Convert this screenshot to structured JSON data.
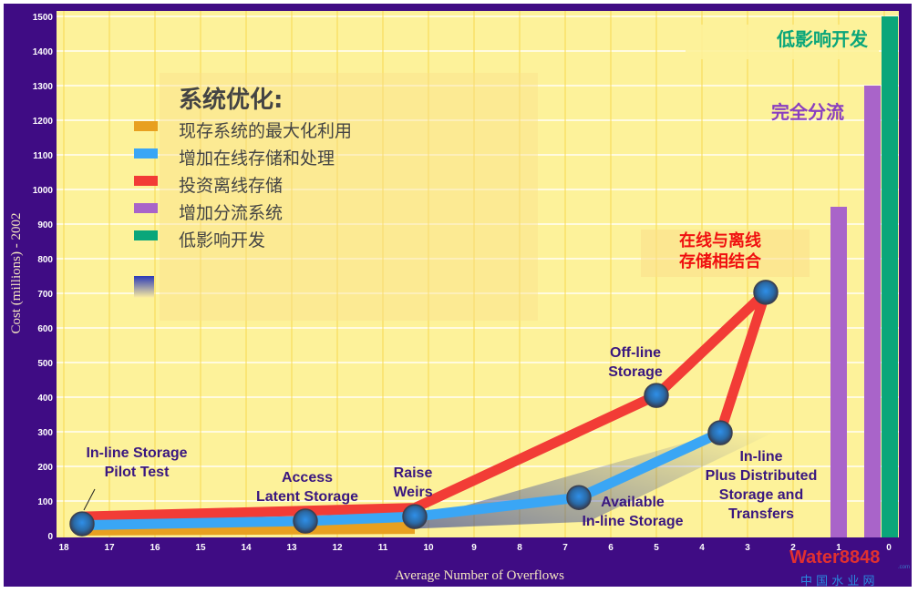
{
  "chart_data": {
    "type": "line",
    "xlabel": "Average Number of Overflows",
    "ylabel": "Cost (millions) - 2002",
    "xlim": [
      18,
      0
    ],
    "ylim": [
      0,
      1500
    ],
    "xticks": [
      18,
      17,
      16,
      15,
      14,
      13,
      12,
      11,
      10,
      9,
      8,
      7,
      6,
      5,
      4,
      3,
      2,
      1,
      0
    ],
    "yticks": [
      0,
      100,
      200,
      300,
      400,
      500,
      600,
      700,
      800,
      900,
      1000,
      1100,
      1200,
      1300,
      1400,
      1500
    ],
    "grid": true,
    "legend": {
      "title": "系统优化:",
      "placement": "top-left",
      "entries": [
        {
          "label": "现存系统的最大化利用",
          "color": "#e8a020"
        },
        {
          "label": "增加在线存储和处理",
          "color": "#3aa6f5"
        },
        {
          "label": "投资离线存储",
          "color": "#f23c36"
        },
        {
          "label": "增加分流系统",
          "color": "#a964c9"
        },
        {
          "label": "低影响开发",
          "color": "#0aa67a"
        }
      ]
    },
    "series": [
      {
        "name": "现存系统的最大化利用",
        "color": "#e8a020",
        "points": [
          [
            17.6,
            12
          ],
          [
            10.3,
            40
          ]
        ]
      },
      {
        "name": "增加在线存储和处理",
        "color": "#3aa6f5",
        "points": [
          [
            17.6,
            30
          ],
          [
            12.7,
            42
          ],
          [
            10.3,
            55
          ],
          [
            6.7,
            110
          ],
          [
            3.6,
            297
          ]
        ]
      },
      {
        "name": "投资离线存储",
        "color": "#f23c36",
        "points": [
          [
            17.6,
            55
          ],
          [
            10.3,
            80
          ],
          [
            5.0,
            405
          ],
          [
            2.6,
            703
          ],
          [
            3.6,
            297
          ]
        ]
      }
    ],
    "markers": [
      [
        17.6,
        34
      ],
      [
        12.7,
        42
      ],
      [
        10.3,
        55
      ],
      [
        6.7,
        110
      ],
      [
        5.0,
        405
      ],
      [
        3.6,
        297
      ],
      [
        2.6,
        703
      ]
    ],
    "bars": [
      {
        "name": "增加分流系统",
        "x": 1,
        "value": 950,
        "color": "#a964c9"
      },
      {
        "name": "增加分流系统",
        "x": 0,
        "value": 1300,
        "color": "#a964c9"
      },
      {
        "name": "低影响开发",
        "x": 0,
        "value": 1500,
        "color": "#0aa67a"
      }
    ],
    "annotations": [
      {
        "lines": [
          "In-line Storage",
          "Pilot Test"
        ],
        "color": "#3a1780"
      },
      {
        "lines": [
          "Access",
          "Latent Storage"
        ],
        "color": "#3a1780"
      },
      {
        "lines": [
          "Raise",
          "Weirs"
        ],
        "color": "#3a1780"
      },
      {
        "lines": [
          "Available",
          "In-line Storage"
        ],
        "color": "#3a1780"
      },
      {
        "lines": [
          "Off-line",
          "Storage"
        ],
        "color": "#3a1780"
      },
      {
        "lines": [
          "In-line",
          "Plus  Distributed",
          "Storage and",
          "Transfers"
        ],
        "color": "#3a1780"
      },
      {
        "lines": [
          "在线与离线",
          "存储相结合"
        ],
        "color": "#f01010"
      },
      {
        "lines": [
          "完全分流"
        ],
        "color": "#8a3fc0"
      },
      {
        "lines": [
          "低影响开发"
        ],
        "color": "#0aa67a"
      }
    ]
  },
  "watermark": {
    "brand": "Water8848",
    "suffix": ".com",
    "subtitle": "中 国 水 业 网"
  }
}
